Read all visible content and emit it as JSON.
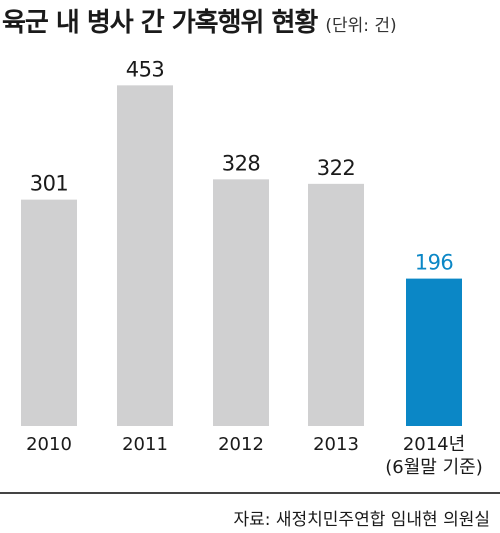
{
  "chart_data": {
    "type": "bar",
    "title": "육군 내 병사 간 가혹행위 현황",
    "unit": "(단위: 건)",
    "categories": [
      "2010",
      "2011",
      "2012",
      "2013",
      "2014년 (6월말 기준)"
    ],
    "category_lines": [
      [
        "2010"
      ],
      [
        "2011"
      ],
      [
        "2012"
      ],
      [
        "2013"
      ],
      [
        "2014년",
        "(6월말 기준)"
      ]
    ],
    "values": [
      301,
      453,
      328,
      322,
      196
    ],
    "ylim": [
      0,
      500
    ],
    "highlight_index": 4,
    "colors": {
      "bar": "#d0d0d1",
      "highlight": "#0b87c6",
      "text": "#1a1a1a"
    },
    "source": "자료: 새정치민주연합 임내현 의원실",
    "grid": false,
    "legend": "none"
  }
}
